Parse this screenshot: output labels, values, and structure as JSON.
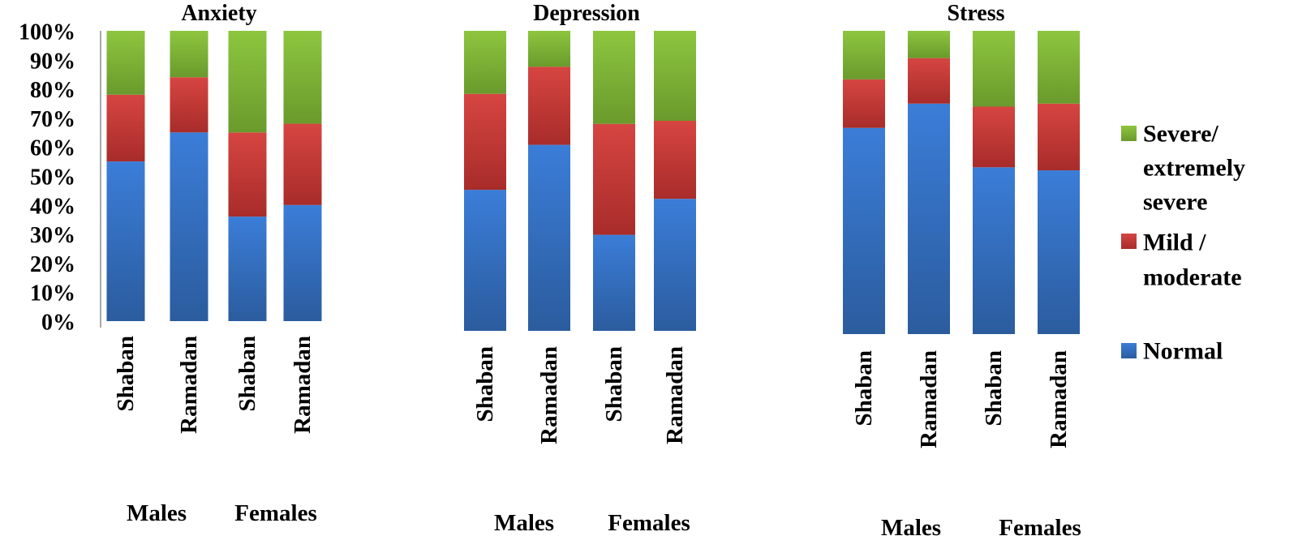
{
  "chart_data": [
    {
      "type": "bar",
      "stacked": true,
      "title": "Anxiety",
      "categories": [
        "Shaban",
        "Ramadan",
        "Shaban",
        "Ramadan"
      ],
      "groups": [
        {
          "label": "Males",
          "categories": [
            "Shaban",
            "Ramadan"
          ]
        },
        {
          "label": "Females",
          "categories": [
            "Shaban",
            "Ramadan"
          ]
        }
      ],
      "series": [
        {
          "name": "Normal",
          "values": [
            55,
            65,
            36,
            40
          ]
        },
        {
          "name": "Mild / moderate",
          "values": [
            23,
            19,
            29,
            28
          ]
        },
        {
          "name": "Severe/ extremely severe",
          "values": [
            22,
            16,
            35,
            32
          ]
        }
      ],
      "ylim": [
        0,
        100
      ],
      "yticks": [
        "0%",
        "10%",
        "20%",
        "30%",
        "40%",
        "50%",
        "60%",
        "70%",
        "80%",
        "90%",
        "100%"
      ]
    },
    {
      "type": "bar",
      "stacked": true,
      "title": "Depression",
      "categories": [
        "Shaban",
        "Ramadan",
        "Shaban",
        "Ramadan"
      ],
      "groups": [
        {
          "label": "Males",
          "categories": [
            "Shaban",
            "Ramadan"
          ]
        },
        {
          "label": "Females",
          "categories": [
            "Shaban",
            "Ramadan"
          ]
        }
      ],
      "series": [
        {
          "name": "Normal",
          "values": [
            47,
            62,
            32,
            44
          ]
        },
        {
          "name": "Mild / moderate",
          "values": [
            32,
            26,
            37,
            26
          ]
        },
        {
          "name": "Severe/ extremely severe",
          "values": [
            21,
            12,
            31,
            30
          ]
        }
      ],
      "ylim": [
        0,
        100
      ]
    },
    {
      "type": "bar",
      "stacked": true,
      "title": "Stress",
      "categories": [
        "Shaban",
        "Ramadan",
        "Shaban",
        "Ramadan"
      ],
      "groups": [
        {
          "label": "Males",
          "categories": [
            "Shaban",
            "Ramadan"
          ]
        },
        {
          "label": "Females",
          "categories": [
            "Shaban",
            "Ramadan"
          ]
        }
      ],
      "series": [
        {
          "name": "Normal",
          "values": [
            68,
            76,
            55,
            54
          ]
        },
        {
          "name": "Mild / moderate",
          "values": [
            16,
            15,
            20,
            22
          ]
        },
        {
          "name": "Severe/ extremely severe",
          "values": [
            16,
            9,
            25,
            24
          ]
        }
      ],
      "ylim": [
        0,
        100
      ]
    }
  ],
  "legend": {
    "position": "right",
    "entries": [
      {
        "name": "Severe/ extremely severe",
        "lines": [
          "Severe/",
          "extremely",
          "severe"
        ]
      },
      {
        "name": "Mild / moderate",
        "lines": [
          "Mild /",
          "moderate"
        ]
      },
      {
        "name": "Normal",
        "lines": [
          "Normal"
        ]
      }
    ]
  },
  "colors": {
    "Normal": "#3b7dd8",
    "Normal_dark": "#2b5c9e",
    "Mild / moderate": "#d64541",
    "Mild / moderate_dark": "#a82c2a",
    "Severe/ extremely severe": "#8dc63f",
    "Severe/ extremely severe_dark": "#6a9a2c",
    "axis": "#8c8c8c"
  }
}
